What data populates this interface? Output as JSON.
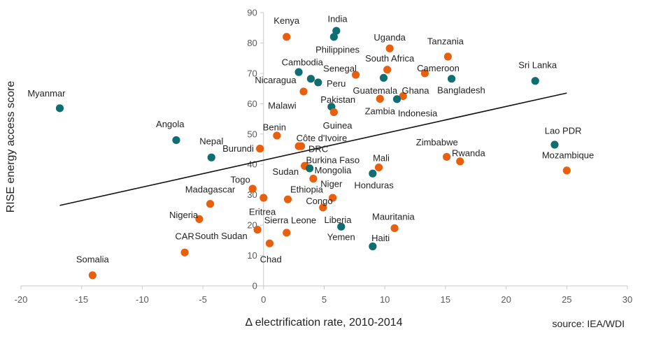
{
  "chart_data": {
    "type": "scatter",
    "xlabel": "Δ electrification rate, 2010-2014",
    "ylabel": "RISE energy access score",
    "source": "source: IEA/WDI",
    "xlim": [
      -20,
      30
    ],
    "ylim": [
      0,
      90
    ],
    "xticks": [
      -20,
      -15,
      -10,
      -5,
      0,
      5,
      10,
      15,
      20,
      25,
      30
    ],
    "yticks": [
      0,
      10,
      20,
      30,
      40,
      50,
      60,
      70,
      80,
      90
    ],
    "colors": {
      "teal": "#0e6e72",
      "orange": "#e8600e",
      "trend": "#111111"
    },
    "trendline": {
      "x": [
        -16.8,
        25
      ],
      "y": [
        26.5,
        63.5
      ]
    },
    "points": [
      {
        "label": "Myanmar",
        "x": -16.8,
        "y": 58.5,
        "color": "teal",
        "lx": -17.9,
        "ly": 63.4,
        "anchor": "middle"
      },
      {
        "label": "Angola",
        "x": -7.2,
        "y": 48,
        "color": "teal",
        "lx": -7.7,
        "ly": 53.3,
        "anchor": "middle"
      },
      {
        "label": "Nepal",
        "x": -4.3,
        "y": 42.3,
        "color": "teal",
        "lx": -4.3,
        "ly": 47.6,
        "anchor": "middle"
      },
      {
        "label": "Somalia",
        "x": -14.1,
        "y": 3.5,
        "color": "orange",
        "lx": -14.1,
        "ly": 8.8,
        "anchor": "middle"
      },
      {
        "label": "CAR",
        "x": -6.5,
        "y": 11,
        "color": "orange",
        "lx": -6.5,
        "ly": 16.3,
        "anchor": "middle"
      },
      {
        "label": "Nigeria",
        "x": -5.3,
        "y": 22,
        "color": "orange",
        "lx": -5.4,
        "ly": 23.4,
        "anchor": "end"
      },
      {
        "label": "Madagascar",
        "x": -4.4,
        "y": 27,
        "color": "orange",
        "lx": -4.4,
        "ly": 31.8,
        "anchor": "middle"
      },
      {
        "label": "Burundi",
        "x": -0.3,
        "y": 45.2,
        "color": "orange",
        "lx": -0.8,
        "ly": 45.2,
        "anchor": "end"
      },
      {
        "label": "Togo",
        "x": -0.9,
        "y": 32,
        "color": "orange",
        "lx": -1.1,
        "ly": 35,
        "anchor": "end"
      },
      {
        "label": "Eritrea",
        "x": 0,
        "y": 29,
        "color": "orange",
        "lx": -0.1,
        "ly": 24.4,
        "anchor": "middle"
      },
      {
        "label": "South Sudan",
        "x": -0.5,
        "y": 18.5,
        "color": "orange",
        "lx": -3.5,
        "ly": 16.5,
        "anchor": "middle"
      },
      {
        "label": "Chad",
        "x": 0.5,
        "y": 14,
        "color": "orange",
        "lx": 0.6,
        "ly": 8.8,
        "anchor": "middle"
      },
      {
        "label": "Sierra Leone",
        "x": 1.9,
        "y": 17.5,
        "color": "orange",
        "lx": 2.2,
        "ly": 21.6,
        "anchor": "middle"
      },
      {
        "label": "Ethiopia",
        "x": 2,
        "y": 28.5,
        "color": "orange",
        "lx": 2.2,
        "ly": 31.8,
        "anchor": "start"
      },
      {
        "label": "Benin",
        "x": 1.1,
        "y": 49.5,
        "color": "orange",
        "lx": 0.9,
        "ly": 52.2,
        "anchor": "middle"
      },
      {
        "label": "Côte d'Ivoire",
        "x": 2.9,
        "y": 46,
        "color": "orange",
        "lx": 2.7,
        "ly": 48.7,
        "anchor": "start"
      },
      {
        "label": "DRC",
        "x": 3.1,
        "y": 46,
        "color": "orange",
        "lx": 3.7,
        "ly": 45.1,
        "anchor": "start"
      },
      {
        "label": "Sudan",
        "x": 3.4,
        "y": 39.5,
        "color": "orange",
        "lx": 2.9,
        "ly": 37.6,
        "anchor": "end"
      },
      {
        "label": "Burkina Faso",
        "x": 3.4,
        "y": 39.5,
        "color": "orange",
        "lx": 3.5,
        "ly": 41.4,
        "anchor": "start"
      },
      {
        "label": "Mongolia",
        "x": 3.8,
        "y": 38.7,
        "color": "teal",
        "lx": 4.2,
        "ly": 38.1,
        "anchor": "start"
      },
      {
        "label": "Niger",
        "x": 4.1,
        "y": 35.3,
        "color": "orange",
        "lx": 4.7,
        "ly": 33.6,
        "anchor": "start"
      },
      {
        "label": "Congo",
        "x": 5.7,
        "y": 29,
        "color": "orange",
        "lx": 5.7,
        "ly": 28,
        "anchor": "end"
      },
      {
        "label": "Liberia",
        "x": 4.9,
        "y": 25.8,
        "color": "orange",
        "lx": 5,
        "ly": 21.7,
        "anchor": "start"
      },
      {
        "label": "Malawi",
        "x": 3.3,
        "y": 64,
        "color": "orange",
        "lx": 2.7,
        "ly": 59.4,
        "anchor": "end"
      },
      {
        "label": "Nicaragua",
        "x": 3.9,
        "y": 68.2,
        "color": "teal",
        "lx": 2.7,
        "ly": 67.8,
        "anchor": "end"
      },
      {
        "label": "Cambodia",
        "x": 2.9,
        "y": 70.4,
        "color": "teal",
        "lx": 3.2,
        "ly": 73.6,
        "anchor": "middle"
      },
      {
        "label": "Peru",
        "x": 4.5,
        "y": 67,
        "color": "teal",
        "lx": 5.2,
        "ly": 66.6,
        "anchor": "start"
      },
      {
        "label": "Pakistan",
        "x": 5.6,
        "y": 59,
        "color": "teal",
        "lx": 4.7,
        "ly": 61.4,
        "anchor": "start"
      },
      {
        "label": "Guinea",
        "x": 5.8,
        "y": 57.2,
        "color": "orange",
        "lx": 6.1,
        "ly": 52.8,
        "anchor": "middle"
      },
      {
        "label": "Kenya",
        "x": 1.9,
        "y": 82,
        "color": "orange",
        "lx": 1.9,
        "ly": 87.3,
        "anchor": "middle"
      },
      {
        "label": "India",
        "x": 6,
        "y": 84,
        "color": "teal",
        "lx": 6.1,
        "ly": 87.9,
        "anchor": "middle"
      },
      {
        "label": "Philippines",
        "x": 5.8,
        "y": 82,
        "color": "teal",
        "lx": 6.1,
        "ly": 77.8,
        "anchor": "middle"
      },
      {
        "label": "Uganda",
        "x": 10.4,
        "y": 78.2,
        "color": "orange",
        "lx": 10.4,
        "ly": 81.8,
        "anchor": "middle"
      },
      {
        "label": "South Africa",
        "x": 10.2,
        "y": 71.2,
        "color": "orange",
        "lx": 10.4,
        "ly": 74.9,
        "anchor": "middle"
      },
      {
        "label": "Senegal",
        "x": 7.6,
        "y": 69.5,
        "color": "orange",
        "lx": 6.3,
        "ly": 71.6,
        "anchor": "middle"
      },
      {
        "label": "Guatemala",
        "x": 9.6,
        "y": 61.6,
        "color": "orange",
        "lx": 9.2,
        "ly": 64.3,
        "anchor": "middle"
      },
      {
        "label": "Zambia",
        "x": 9.9,
        "y": 68.5,
        "color": "teal",
        "lx": 9.6,
        "ly": 57.5,
        "anchor": "middle"
      },
      {
        "label": "Ghana",
        "x": 11.5,
        "y": 62.5,
        "color": "orange",
        "lx": 11.4,
        "ly": 64.3,
        "anchor": "start"
      },
      {
        "label": "Indonesia",
        "x": 11,
        "y": 61.5,
        "color": "teal",
        "lx": 12.7,
        "ly": 56.8,
        "anchor": "middle"
      },
      {
        "label": "Tanzania",
        "x": 15.2,
        "y": 75.5,
        "color": "orange",
        "lx": 15,
        "ly": 80.6,
        "anchor": "middle"
      },
      {
        "label": "Cameroon",
        "x": 13.3,
        "y": 70,
        "color": "orange",
        "lx": 14.4,
        "ly": 71.7,
        "anchor": "middle"
      },
      {
        "label": "Bangladesh",
        "x": 15.5,
        "y": 68.2,
        "color": "teal",
        "lx": 16.3,
        "ly": 64.4,
        "anchor": "middle"
      },
      {
        "label": "Sri Lanka",
        "x": 22.4,
        "y": 67.5,
        "color": "teal",
        "lx": 22.6,
        "ly": 72.7,
        "anchor": "middle"
      },
      {
        "label": "Lao PDR",
        "x": 24,
        "y": 46.5,
        "color": "teal",
        "lx": 24.7,
        "ly": 51.1,
        "anchor": "middle"
      },
      {
        "label": "Mozambique",
        "x": 25,
        "y": 38,
        "color": "orange",
        "lx": 25.1,
        "ly": 43,
        "anchor": "middle"
      },
      {
        "label": "Zimbabwe",
        "x": 15.1,
        "y": 42.5,
        "color": "orange",
        "lx": 14.3,
        "ly": 47.3,
        "anchor": "middle"
      },
      {
        "label": "Rwanda",
        "x": 16.2,
        "y": 41,
        "color": "orange",
        "lx": 16.9,
        "ly": 43.7,
        "anchor": "middle"
      },
      {
        "label": "Mali",
        "x": 9.5,
        "y": 39,
        "color": "orange",
        "lx": 9.7,
        "ly": 42.1,
        "anchor": "middle"
      },
      {
        "label": "Honduras",
        "x": 9,
        "y": 37,
        "color": "teal",
        "lx": 9.1,
        "ly": 33.2,
        "anchor": "middle"
      },
      {
        "label": "Mauritania",
        "x": 10.8,
        "y": 19,
        "color": "orange",
        "lx": 10.7,
        "ly": 22.8,
        "anchor": "middle"
      },
      {
        "label": "Yemen",
        "x": 6.4,
        "y": 19.5,
        "color": "teal",
        "lx": 6.4,
        "ly": 16.1,
        "anchor": "middle"
      },
      {
        "label": "Haiti",
        "x": 9,
        "y": 13,
        "color": "teal",
        "lx": 8.9,
        "ly": 15.8,
        "anchor": "start"
      }
    ]
  }
}
